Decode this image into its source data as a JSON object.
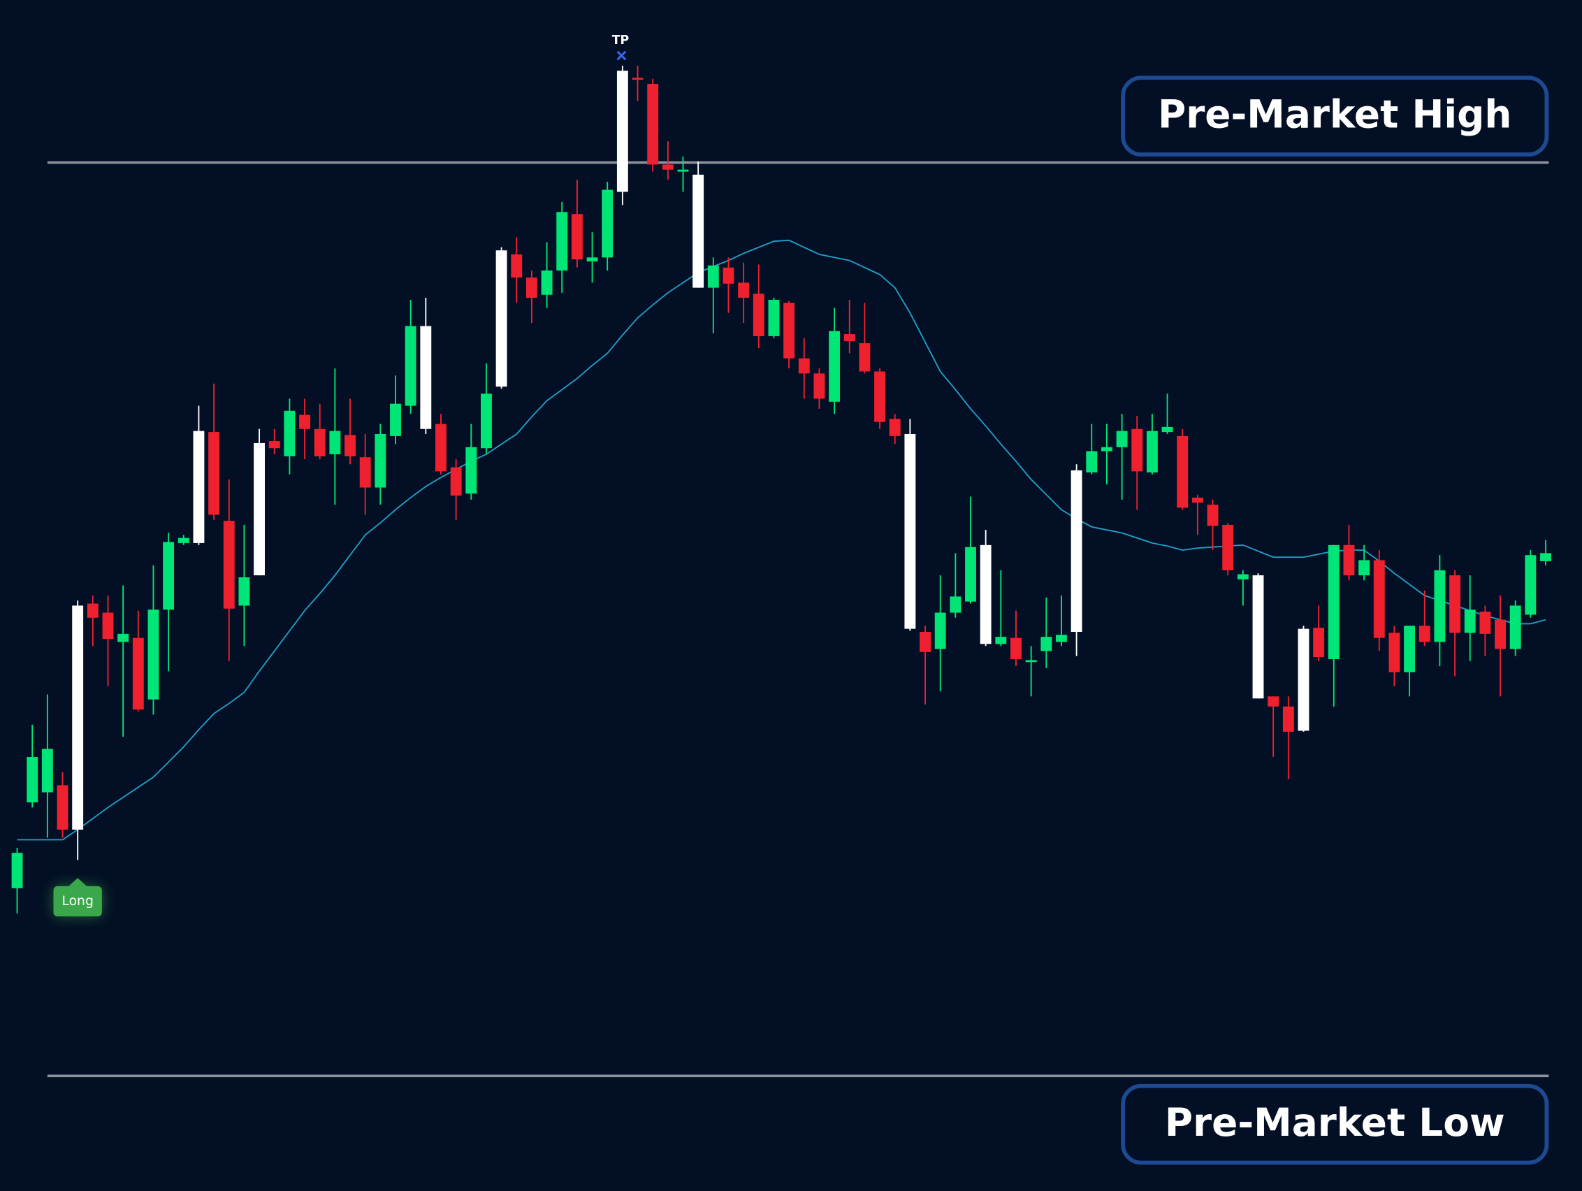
{
  "chart_data": {
    "type": "candlestick",
    "ylim": [
      0,
      118
    ],
    "up_color": "#00e676",
    "down_color": "#f0212e",
    "highlight_color": "#ffffff",
    "highlight": [
      4,
      12,
      16,
      27,
      32,
      40,
      45,
      59,
      64,
      70,
      82,
      85
    ],
    "candles": {
      "open": [
        30.0,
        38.5,
        39.5,
        40.2,
        35.8,
        58.2,
        57.3,
        54.4,
        54.8,
        48.7,
        57.6,
        64.2,
        64.2,
        75.2,
        66.4,
        58.0,
        61.0,
        74.3,
        72.8,
        76.9,
        75.5,
        73.0,
        74.9,
        72.7,
        69.7,
        74.8,
        77.8,
        85.7,
        76.0,
        71.7,
        69.1,
        73.6,
        79.7,
        92.8,
        90.5,
        88.8,
        91.2,
        96.8,
        92.1,
        92.5,
        99.0,
        110.3,
        109.7,
        101.7,
        101.0,
        100.7,
        89.5,
        91.5,
        90.0,
        88.9,
        84.7,
        88.0,
        82.5,
        81.0,
        78.2,
        84.9,
        84.0,
        81.2,
        76.5,
        75.0,
        55.4,
        53.7,
        57.3,
        58.4,
        64.0,
        54.2,
        54.8,
        52.4,
        53.5,
        54.4,
        55.4,
        71.2,
        73.3,
        73.7,
        75.5,
        71.2,
        75.2,
        74.8,
        68.7,
        68.0,
        66.0,
        60.6,
        61.0,
        49.0,
        48.0,
        45.6,
        55.8,
        52.7,
        64.0,
        61.0,
        62.5,
        55.3,
        51.4,
        56.0,
        54.4,
        61.0,
        55.3,
        57.4,
        56.6,
        53.7,
        57.1,
        62.4
      ],
      "high": [
        34.0,
        46.2,
        49.2,
        41.5,
        58.5,
        59.0,
        59.0,
        60.0,
        57.5,
        62.0,
        65.2,
        65.0,
        77.8,
        80.0,
        70.5,
        66.0,
        75.5,
        75.5,
        78.5,
        78.5,
        78.0,
        81.5,
        78.5,
        75.0,
        76.0,
        80.8,
        88.3,
        88.5,
        77.0,
        72.5,
        76.0,
        82.0,
        93.5,
        94.5,
        91.2,
        94.0,
        98.0,
        100.2,
        95.0,
        100.0,
        111.5,
        111.5,
        110.2,
        104.0,
        102.5,
        102.0,
        92.5,
        92.5,
        92.0,
        91.8,
        88.5,
        88.2,
        84.5,
        81.5,
        87.5,
        88.3,
        88.0,
        81.5,
        77.0,
        76.5,
        56.0,
        61.0,
        63.2,
        68.8,
        65.5,
        61.5,
        57.5,
        54.0,
        58.8,
        59.0,
        72.0,
        76.0,
        76.0,
        77.0,
        76.8,
        77.0,
        79.0,
        75.5,
        69.0,
        68.5,
        66.2,
        61.5,
        61.2,
        49.0,
        49.0,
        56.0,
        58.0,
        64.0,
        66.0,
        64.0,
        63.5,
        56.0,
        56.0,
        59.5,
        63.0,
        61.5,
        61.0,
        58.0,
        59.0,
        58.5,
        63.5,
        64.5
      ],
      "low": [
        27.5,
        38.0,
        35.0,
        35.0,
        32.8,
        54.0,
        50.0,
        45.0,
        47.5,
        47.2,
        51.5,
        64.0,
        64.0,
        66.5,
        52.5,
        54.0,
        61.0,
        73.0,
        71.0,
        72.5,
        72.5,
        68.0,
        72.0,
        67.0,
        68.0,
        74.0,
        77.0,
        75.0,
        71.0,
        66.5,
        68.5,
        73.0,
        79.5,
        88.0,
        86.0,
        87.5,
        89.0,
        91.5,
        90.0,
        91.2,
        97.7,
        108.0,
        101.0,
        100.2,
        99.0,
        89.5,
        85.0,
        87.0,
        86.0,
        83.5,
        84.5,
        81.5,
        78.5,
        77.5,
        77.0,
        83.0,
        81.0,
        75.5,
        74.0,
        55.5,
        48.2,
        49.5,
        56.8,
        58.2,
        54.0,
        54.0,
        52.0,
        49.0,
        51.8,
        54.0,
        53.0,
        71.0,
        70.0,
        68.5,
        67.5,
        71.0,
        75.0,
        67.5,
        65.0,
        63.5,
        61.0,
        58.0,
        48.8,
        43.0,
        40.8,
        45.5,
        52.5,
        48.0,
        60.5,
        60.5,
        53.5,
        50.0,
        49.0,
        54.0,
        52.0,
        51.0,
        52.5,
        53.0,
        49.0,
        53.0,
        56.8,
        62.0
      ],
      "close": [
        33.5,
        43.0,
        43.8,
        35.8,
        58.0,
        56.8,
        54.7,
        55.2,
        47.7,
        57.6,
        64.3,
        64.7,
        75.3,
        67.0,
        57.7,
        60.8,
        74.1,
        73.6,
        77.3,
        75.5,
        72.8,
        75.3,
        72.8,
        69.7,
        75.0,
        78.0,
        85.7,
        75.5,
        71.3,
        68.9,
        73.7,
        79.0,
        93.2,
        90.5,
        88.5,
        91.2,
        97.0,
        92.3,
        92.5,
        99.2,
        111.0,
        110.1,
        101.7,
        101.2,
        101.2,
        89.5,
        91.7,
        89.9,
        88.5,
        84.7,
        88.3,
        82.5,
        81.0,
        78.5,
        85.2,
        84.2,
        81.2,
        76.2,
        74.8,
        55.7,
        53.4,
        57.3,
        58.9,
        63.8,
        54.2,
        54.9,
        52.7,
        52.6,
        54.9,
        55.1,
        71.4,
        73.3,
        73.7,
        75.3,
        71.3,
        75.3,
        75.7,
        67.7,
        68.2,
        65.9,
        61.5,
        61.1,
        48.8,
        48.0,
        45.5,
        55.7,
        52.9,
        64.0,
        61.0,
        62.5,
        54.8,
        51.4,
        56.0,
        54.4,
        61.5,
        55.3,
        57.6,
        55.2,
        53.7,
        58.0,
        63.0,
        63.2
      ]
    },
    "ma": {
      "color": "#1e9fc4",
      "values": [
        34.8,
        34.8,
        34.8,
        34.8,
        35.8,
        36.9,
        38.0,
        39.0,
        40.0,
        41.0,
        42.5,
        44.0,
        45.7,
        47.3,
        48.3,
        49.4,
        51.5,
        53.5,
        55.5,
        57.5,
        59.2,
        61.0,
        63.0,
        65.0,
        66.2,
        67.5,
        68.7,
        69.8,
        70.7,
        71.5,
        72.3,
        73.0,
        74.0,
        75.0,
        76.7,
        78.3,
        79.4,
        80.5,
        81.8,
        83.0,
        84.8,
        86.5,
        87.8,
        89.0,
        90.0,
        91.0,
        91.6,
        92.2,
        92.9,
        93.5,
        94.1,
        94.2,
        93.5,
        92.8,
        92.5,
        92.2,
        91.5,
        90.8,
        89.5,
        87.0,
        84.1,
        81.2,
        79.4,
        77.5,
        75.8,
        74.0,
        72.3,
        70.5,
        69.0,
        67.5,
        66.6,
        65.8,
        65.5,
        65.2,
        64.7,
        64.2,
        63.9,
        63.5,
        63.7,
        63.8,
        63.9,
        64.0,
        63.4,
        62.8,
        62.8,
        62.8,
        63.1,
        63.4,
        63.5,
        63.5,
        62.4,
        61.2,
        60.1,
        59.0,
        58.5,
        58.0,
        57.5,
        57.0,
        56.6,
        56.2,
        56.2,
        56.6
      ]
    },
    "levels": [
      {
        "label": "Pre-Market High",
        "value": 101.9,
        "color": "#8d929b"
      },
      {
        "label": "Pre-Market Low",
        "value": 11.4,
        "color": "#8d929b"
      }
    ],
    "annotations": [
      {
        "text": "TP",
        "index": 40,
        "color": "#3b6cf0"
      },
      {
        "text": "Long",
        "index": 4,
        "color": "#3aa84a"
      }
    ]
  }
}
